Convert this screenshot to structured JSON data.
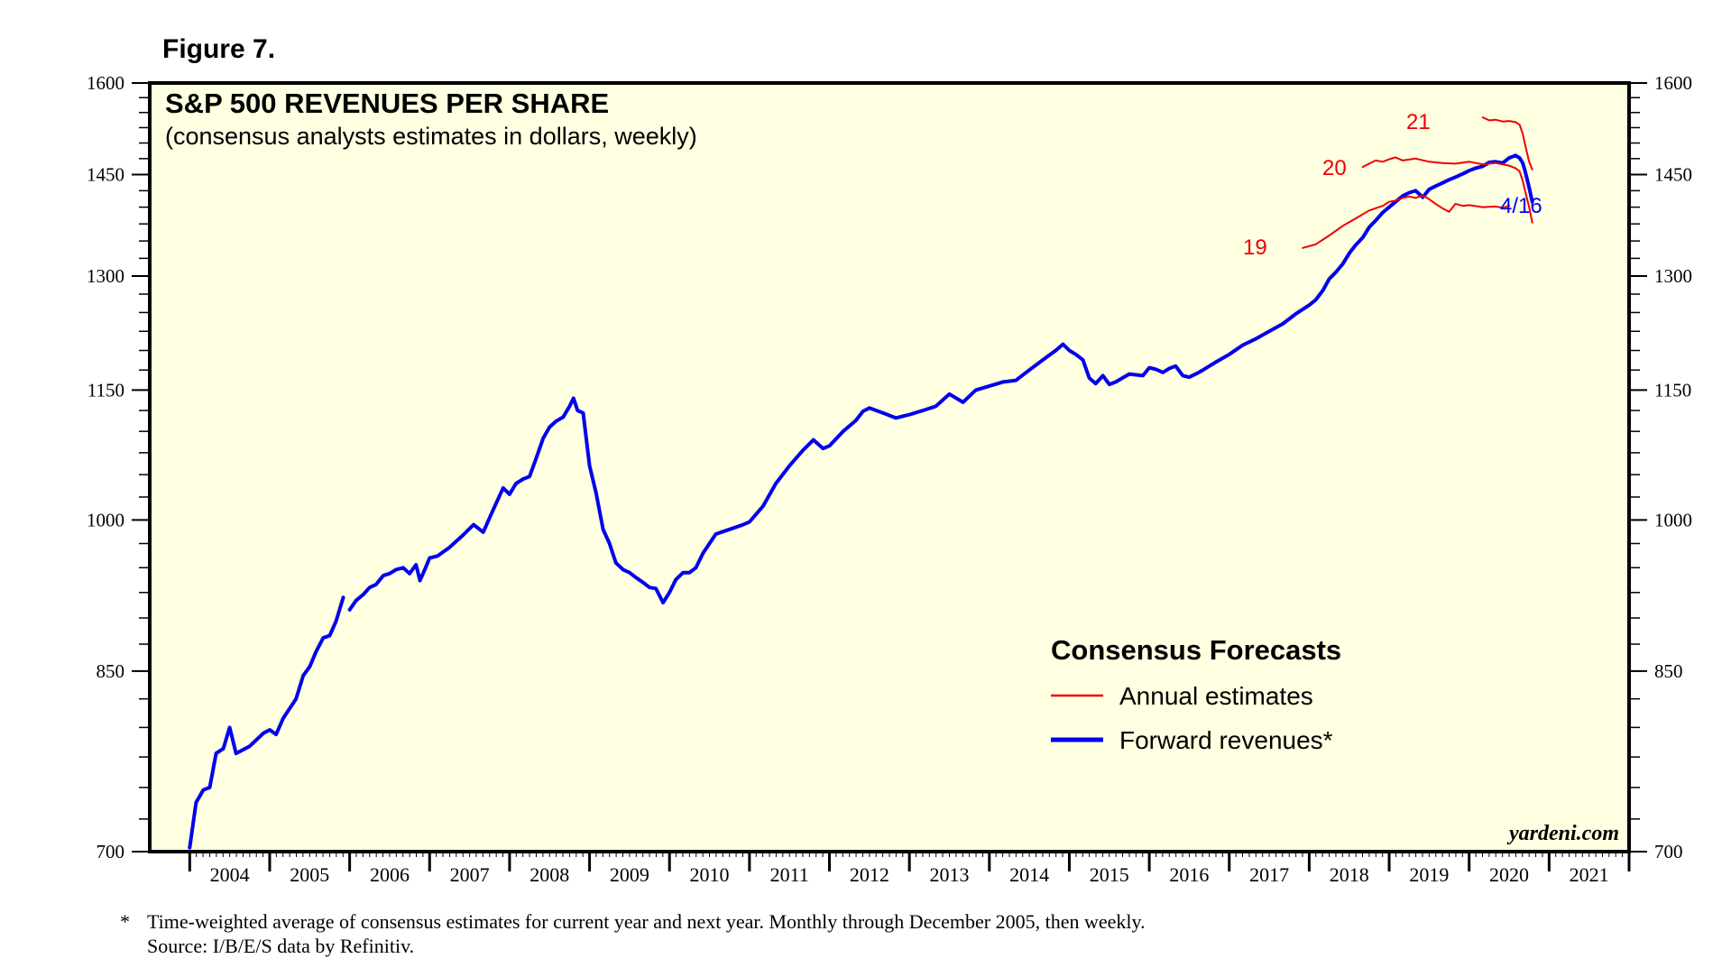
{
  "figure_label": "Figure 7.",
  "colors": {
    "background": "#FFFFE1",
    "forward": "#0000EE",
    "annual": "#EE0000"
  },
  "chart_data": {
    "type": "line",
    "title": "S&P 500 REVENUES PER SHARE",
    "subtitle": "(consensus analysts estimates in dollars, weekly)",
    "xlabel": "",
    "ylabel": "",
    "y_scale": "log",
    "ylim": [
      700,
      1600
    ],
    "xlim": [
      2003.5,
      2022.0
    ],
    "y_ticks": [
      700,
      850,
      1000,
      1150,
      1300,
      1450,
      1600
    ],
    "y_tick_labels": [
      "700",
      "850",
      "1000",
      "1150",
      "1300",
      "1450",
      "1600"
    ],
    "x_ticks": [
      2004,
      2005,
      2006,
      2007,
      2008,
      2009,
      2010,
      2011,
      2012,
      2013,
      2014,
      2015,
      2016,
      2017,
      2018,
      2019,
      2020,
      2021
    ],
    "x_tick_labels": [
      "2004",
      "2005",
      "2006",
      "2007",
      "2008",
      "2009",
      "2010",
      "2011",
      "2012",
      "2013",
      "2014",
      "2015",
      "2016",
      "2017",
      "2018",
      "2019",
      "2020",
      "2021"
    ],
    "legend": {
      "title": "Consensus Forecasts",
      "position": "lower-right",
      "entries": [
        "Annual estimates",
        "Forward revenues*"
      ]
    },
    "series": [
      {
        "name": "Forward revenues*",
        "color": "#0000EE",
        "segments": [
          [
            [
              2004.0,
              703
            ],
            [
              2004.08,
              738
            ],
            [
              2004.17,
              748
            ],
            [
              2004.25,
              750
            ],
            [
              2004.33,
              778
            ],
            [
              2004.42,
              782
            ],
            [
              2004.5,
              800
            ],
            [
              2004.58,
              778
            ],
            [
              2004.75,
              784
            ],
            [
              2004.92,
              795
            ],
            [
              2005.0,
              798
            ],
            [
              2005.08,
              794
            ],
            [
              2005.17,
              808
            ],
            [
              2005.33,
              825
            ],
            [
              2005.42,
              846
            ],
            [
              2005.5,
              854
            ],
            [
              2005.58,
              868
            ],
            [
              2005.67,
              881
            ],
            [
              2005.75,
              883
            ],
            [
              2005.83,
              897
            ],
            [
              2005.92,
              920
            ]
          ],
          [
            [
              2006.0,
              908
            ],
            [
              2006.08,
              917
            ],
            [
              2006.17,
              923
            ],
            [
              2006.25,
              930
            ],
            [
              2006.33,
              933
            ],
            [
              2006.42,
              942
            ],
            [
              2006.5,
              944
            ],
            [
              2006.58,
              948
            ],
            [
              2006.67,
              950
            ],
            [
              2006.75,
              944
            ],
            [
              2006.83,
              953
            ],
            [
              2006.88,
              937
            ],
            [
              2006.95,
              950
            ],
            [
              2007.0,
              960
            ],
            [
              2007.1,
              962
            ],
            [
              2007.25,
              971
            ],
            [
              2007.42,
              984
            ],
            [
              2007.55,
              995
            ],
            [
              2007.67,
              987
            ],
            [
              2007.8,
              1012
            ],
            [
              2007.92,
              1035
            ],
            [
              2008.0,
              1028
            ],
            [
              2008.08,
              1040
            ],
            [
              2008.17,
              1045
            ],
            [
              2008.25,
              1048
            ],
            [
              2008.33,
              1068
            ],
            [
              2008.42,
              1092
            ],
            [
              2008.5,
              1105
            ],
            [
              2008.58,
              1112
            ],
            [
              2008.67,
              1117
            ],
            [
              2008.75,
              1130
            ],
            [
              2008.8,
              1140
            ],
            [
              2008.85,
              1125
            ],
            [
              2008.92,
              1122
            ],
            [
              2009.0,
              1060
            ],
            [
              2009.08,
              1030
            ],
            [
              2009.17,
              990
            ],
            [
              2009.25,
              975
            ],
            [
              2009.33,
              955
            ],
            [
              2009.42,
              948
            ],
            [
              2009.5,
              945
            ],
            [
              2009.58,
              940
            ],
            [
              2009.67,
              935
            ],
            [
              2009.75,
              930
            ],
            [
              2009.83,
              929
            ],
            [
              2009.92,
              915
            ],
            [
              2010.0,
              925
            ],
            [
              2010.08,
              938
            ],
            [
              2010.17,
              945
            ],
            [
              2010.25,
              945
            ],
            [
              2010.33,
              950
            ],
            [
              2010.42,
              965
            ],
            [
              2010.5,
              975
            ],
            [
              2010.58,
              985
            ],
            [
              2010.75,
              990
            ],
            [
              2010.92,
              995
            ],
            [
              2011.0,
              998
            ],
            [
              2011.17,
              1015
            ],
            [
              2011.33,
              1040
            ],
            [
              2011.5,
              1060
            ],
            [
              2011.67,
              1078
            ],
            [
              2011.8,
              1090
            ],
            [
              2011.92,
              1080
            ],
            [
              2012.0,
              1083
            ],
            [
              2012.17,
              1100
            ],
            [
              2012.33,
              1113
            ],
            [
              2012.42,
              1124
            ],
            [
              2012.5,
              1128
            ],
            [
              2012.67,
              1122
            ],
            [
              2012.83,
              1116
            ],
            [
              2013.0,
              1120
            ],
            [
              2013.17,
              1125
            ],
            [
              2013.33,
              1130
            ],
            [
              2013.5,
              1145
            ],
            [
              2013.67,
              1135
            ],
            [
              2013.83,
              1150
            ],
            [
              2014.0,
              1155
            ],
            [
              2014.17,
              1160
            ],
            [
              2014.33,
              1162
            ],
            [
              2014.5,
              1175
            ],
            [
              2014.67,
              1188
            ],
            [
              2014.83,
              1200
            ],
            [
              2014.92,
              1208
            ],
            [
              2015.0,
              1200
            ],
            [
              2015.08,
              1195
            ],
            [
              2015.17,
              1188
            ],
            [
              2015.25,
              1165
            ],
            [
              2015.33,
              1158
            ],
            [
              2015.42,
              1168
            ],
            [
              2015.5,
              1157
            ],
            [
              2015.58,
              1160
            ],
            [
              2015.75,
              1170
            ],
            [
              2015.92,
              1168
            ],
            [
              2016.0,
              1178
            ],
            [
              2016.08,
              1176
            ],
            [
              2016.17,
              1172
            ],
            [
              2016.25,
              1177
            ],
            [
              2016.33,
              1180
            ],
            [
              2016.42,
              1168
            ],
            [
              2016.5,
              1166
            ],
            [
              2016.58,
              1170
            ],
            [
              2016.67,
              1175
            ],
            [
              2016.75,
              1180
            ],
            [
              2016.83,
              1185
            ],
            [
              2017.0,
              1195
            ],
            [
              2017.17,
              1207
            ],
            [
              2017.33,
              1215
            ],
            [
              2017.5,
              1225
            ],
            [
              2017.67,
              1235
            ],
            [
              2017.83,
              1248
            ],
            [
              2018.0,
              1260
            ],
            [
              2018.08,
              1267
            ],
            [
              2018.17,
              1280
            ],
            [
              2018.25,
              1296
            ],
            [
              2018.33,
              1305
            ],
            [
              2018.42,
              1317
            ],
            [
              2018.5,
              1332
            ],
            [
              2018.58,
              1344
            ],
            [
              2018.67,
              1355
            ],
            [
              2018.75,
              1370
            ],
            [
              2018.83,
              1380
            ],
            [
              2018.92,
              1392
            ],
            [
              2019.0,
              1400
            ],
            [
              2019.08,
              1408
            ],
            [
              2019.17,
              1417
            ],
            [
              2019.25,
              1422
            ],
            [
              2019.33,
              1425
            ],
            [
              2019.42,
              1415
            ],
            [
              2019.5,
              1427
            ],
            [
              2019.58,
              1432
            ],
            [
              2019.67,
              1437
            ],
            [
              2019.75,
              1442
            ],
            [
              2019.83,
              1446
            ],
            [
              2019.92,
              1451
            ],
            [
              2020.0,
              1456
            ],
            [
              2020.08,
              1460
            ],
            [
              2020.17,
              1463
            ],
            [
              2020.25,
              1469
            ],
            [
              2020.33,
              1470
            ],
            [
              2020.42,
              1468
            ],
            [
              2020.5,
              1476
            ],
            [
              2020.58,
              1480
            ],
            [
              2020.63,
              1476
            ],
            [
              2020.67,
              1468
            ],
            [
              2020.7,
              1455
            ],
            [
              2020.75,
              1430
            ],
            [
              2020.79,
              1408
            ]
          ]
        ]
      },
      {
        "name": "Annual estimates (2019)",
        "color": "#EE0000",
        "label": "19",
        "points": [
          [
            2017.92,
            1340
          ],
          [
            2018.08,
            1345
          ],
          [
            2018.25,
            1358
          ],
          [
            2018.42,
            1372
          ],
          [
            2018.58,
            1383
          ],
          [
            2018.75,
            1395
          ],
          [
            2018.92,
            1402
          ],
          [
            2019.0,
            1408
          ],
          [
            2019.08,
            1410
          ],
          [
            2019.17,
            1414
          ],
          [
            2019.25,
            1416
          ],
          [
            2019.33,
            1414
          ],
          [
            2019.42,
            1418
          ],
          [
            2019.5,
            1412
          ],
          [
            2019.58,
            1405
          ],
          [
            2019.67,
            1398
          ],
          [
            2019.75,
            1393
          ],
          [
            2019.83,
            1405
          ],
          [
            2019.92,
            1402
          ],
          [
            2020.0,
            1403
          ],
          [
            2020.17,
            1400
          ],
          [
            2020.33,
            1401
          ],
          [
            2020.42,
            1399
          ],
          [
            2020.5,
            1402
          ]
        ]
      },
      {
        "name": "Annual estimates (2020)",
        "color": "#EE0000",
        "label": "20",
        "points": [
          [
            2018.67,
            1462
          ],
          [
            2018.83,
            1472
          ],
          [
            2018.92,
            1470
          ],
          [
            2019.0,
            1474
          ],
          [
            2019.08,
            1477
          ],
          [
            2019.17,
            1472
          ],
          [
            2019.33,
            1475
          ],
          [
            2019.5,
            1470
          ],
          [
            2019.67,
            1468
          ],
          [
            2019.83,
            1467
          ],
          [
            2020.0,
            1470
          ],
          [
            2020.17,
            1466
          ],
          [
            2020.33,
            1468
          ],
          [
            2020.5,
            1464
          ],
          [
            2020.58,
            1460
          ],
          [
            2020.63,
            1455
          ],
          [
            2020.67,
            1440
          ],
          [
            2020.71,
            1420
          ],
          [
            2020.75,
            1400
          ],
          [
            2020.79,
            1377
          ]
        ]
      },
      {
        "name": "Annual estimates (2021)",
        "color": "#EE0000",
        "label": "21",
        "points": [
          [
            2020.17,
            1542
          ],
          [
            2020.25,
            1537
          ],
          [
            2020.33,
            1538
          ],
          [
            2020.42,
            1535
          ],
          [
            2020.5,
            1536
          ],
          [
            2020.58,
            1534
          ],
          [
            2020.63,
            1530
          ],
          [
            2020.67,
            1515
          ],
          [
            2020.71,
            1492
          ],
          [
            2020.75,
            1470
          ],
          [
            2020.79,
            1458
          ]
        ]
      }
    ],
    "annotations": [
      {
        "text": "19",
        "series": "annual-2019",
        "color": "#EE0000"
      },
      {
        "text": "20",
        "series": "annual-2020",
        "color": "#EE0000"
      },
      {
        "text": "21",
        "series": "annual-2021",
        "color": "#EE0000"
      },
      {
        "text": "4/16",
        "series": "forward",
        "color": "#0000EE"
      }
    ]
  },
  "branding": "yardeni.com",
  "footnote": {
    "marker": "*",
    "line1": "Time-weighted average of consensus estimates for current year and next year. Monthly through December 2005, then weekly.",
    "line2": "Source: I/B/E/S data by Refinitiv."
  }
}
